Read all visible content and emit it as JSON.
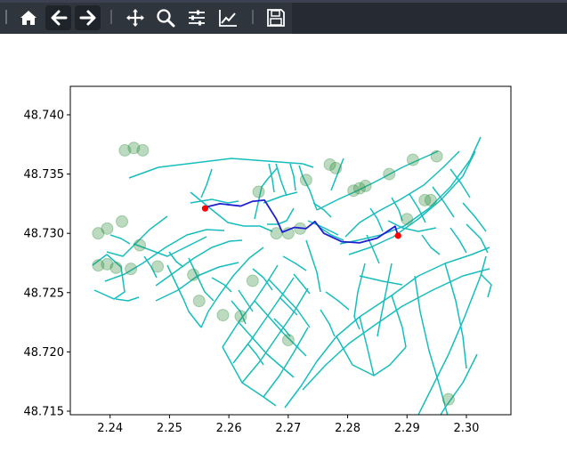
{
  "toolbar": {
    "buttons": [
      {
        "name": "home-icon",
        "label": ""
      },
      {
        "name": "back-icon",
        "label": ""
      },
      {
        "name": "forward-icon",
        "label": ""
      },
      {
        "name": "pan-icon",
        "label": ""
      },
      {
        "name": "zoom-icon",
        "label": ""
      },
      {
        "name": "configure-subplots-icon",
        "label": ""
      },
      {
        "name": "edit-axis-icon",
        "label": ""
      },
      {
        "name": "save-icon",
        "label": ""
      }
    ]
  },
  "chart_data": {
    "type": "scatter",
    "title": "",
    "xlabel": "",
    "ylabel": "",
    "xlim": [
      2.2333,
      2.3075
    ],
    "ylim": [
      48.7147,
      48.7424
    ],
    "xticks": [
      "2.24",
      "2.25",
      "2.26",
      "2.27",
      "2.28",
      "2.29",
      "2.30"
    ],
    "yticks": [
      "48.715",
      "48.720",
      "48.725",
      "48.730",
      "48.735",
      "48.740"
    ],
    "grid": false,
    "colors": {
      "network": "#17bdbd",
      "route": "#1f1fcf",
      "endpoints": "#ff0000",
      "nodes": "#2e8b3c"
    },
    "series": [
      {
        "kind": "route",
        "values": [
          [
            2.256,
            48.7322
          ],
          [
            2.2585,
            48.7325
          ],
          [
            2.262,
            48.7323
          ],
          [
            2.264,
            48.7327
          ],
          [
            2.266,
            48.7328
          ],
          [
            2.268,
            48.7312
          ],
          [
            2.269,
            48.7301
          ],
          [
            2.271,
            48.7305
          ],
          [
            2.273,
            48.7304
          ],
          [
            2.2745,
            48.731
          ],
          [
            2.276,
            48.73
          ],
          [
            2.279,
            48.7293
          ],
          [
            2.282,
            48.7292
          ],
          [
            2.285,
            48.7296
          ],
          [
            2.288,
            48.7306
          ],
          [
            2.2885,
            48.7298
          ]
        ]
      },
      {
        "kind": "endpoints",
        "values": [
          [
            2.256,
            48.7321
          ],
          [
            2.2885,
            48.7298
          ]
        ]
      },
      {
        "kind": "nodes",
        "values": [
          [
            2.2425,
            48.737
          ],
          [
            2.244,
            48.7372
          ],
          [
            2.2455,
            48.737
          ],
          [
            2.238,
            48.73
          ],
          [
            2.2395,
            48.7304
          ],
          [
            2.242,
            48.731
          ],
          [
            2.238,
            48.7273
          ],
          [
            2.2395,
            48.7274
          ],
          [
            2.241,
            48.7271
          ],
          [
            2.2435,
            48.727
          ],
          [
            2.255,
            48.7243
          ],
          [
            2.254,
            48.7265
          ],
          [
            2.259,
            48.7231
          ],
          [
            2.262,
            48.723
          ],
          [
            2.264,
            48.726
          ],
          [
            2.27,
            48.73
          ],
          [
            2.272,
            48.7304
          ],
          [
            2.273,
            48.7345
          ],
          [
            2.277,
            48.7358
          ],
          [
            2.278,
            48.7355
          ],
          [
            2.281,
            48.7336
          ],
          [
            2.282,
            48.7338
          ],
          [
            2.283,
            48.734
          ],
          [
            2.287,
            48.735
          ],
          [
            2.293,
            48.7328
          ],
          [
            2.294,
            48.7328
          ],
          [
            2.29,
            48.7312
          ],
          [
            2.297,
            48.716
          ],
          [
            2.245,
            48.729
          ],
          [
            2.248,
            48.7272
          ],
          [
            2.265,
            48.7335
          ],
          [
            2.268,
            48.73
          ],
          [
            2.27,
            48.721
          ],
          [
            2.291,
            48.7362
          ],
          [
            2.295,
            48.7365
          ]
        ]
      }
    ]
  }
}
